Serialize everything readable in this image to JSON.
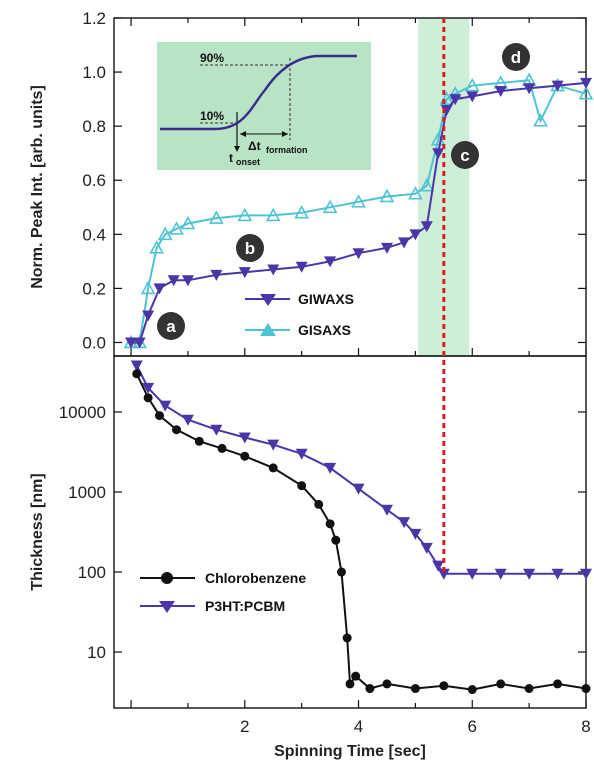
{
  "chart_data": [
    {
      "type": "line",
      "panel": "top",
      "ylabel": "Norm. Peak Int. [arb. units]",
      "xlim": [
        -0.3,
        8
      ],
      "ylim": [
        -0.05,
        1.2
      ],
      "yticks": [
        "0.0",
        "0.2",
        "0.4",
        "0.6",
        "0.8",
        "1.0",
        "1.2"
      ],
      "ytick_values": [
        0,
        0.2,
        0.4,
        0.6,
        0.8,
        1.0,
        1.2
      ],
      "shaded_region": [
        5.05,
        5.95
      ],
      "marker_line_x": 5.5,
      "series": [
        {
          "name": "GIWAXS",
          "color": "#4b35a8",
          "marker": "triangle-down",
          "x": [
            0.0,
            0.15,
            0.3,
            0.5,
            0.75,
            1.0,
            1.5,
            2.0,
            2.5,
            3.0,
            3.5,
            4.0,
            4.5,
            4.8,
            5.0,
            5.2,
            5.4,
            5.55,
            5.7,
            6.0,
            6.5,
            7.0,
            7.5,
            8.0
          ],
          "y": [
            0.0,
            0.0,
            0.1,
            0.2,
            0.23,
            0.23,
            0.25,
            0.26,
            0.27,
            0.28,
            0.3,
            0.33,
            0.35,
            0.37,
            0.4,
            0.43,
            0.7,
            0.86,
            0.9,
            0.91,
            0.93,
            0.94,
            0.95,
            0.96
          ]
        },
        {
          "name": "GISAXS",
          "color": "#4fc3d6",
          "marker": "triangle-up",
          "x": [
            0.0,
            0.15,
            0.3,
            0.45,
            0.6,
            0.8,
            1.0,
            1.5,
            2.0,
            2.5,
            3.0,
            3.5,
            4.0,
            4.5,
            5.0,
            5.2,
            5.4,
            5.55,
            5.7,
            6.0,
            6.5,
            7.0,
            7.2,
            7.5,
            8.0
          ],
          "y": [
            0.0,
            0.0,
            0.2,
            0.35,
            0.4,
            0.42,
            0.44,
            0.46,
            0.47,
            0.47,
            0.48,
            0.5,
            0.52,
            0.54,
            0.55,
            0.58,
            0.75,
            0.9,
            0.92,
            0.95,
            0.96,
            0.97,
            0.82,
            0.95,
            0.92
          ]
        }
      ],
      "inset": {
        "label_high": "90%",
        "label_low": "10%",
        "delta_label": "Δt",
        "delta_sub": "formation",
        "onset_label": "t",
        "onset_sub": "onset"
      },
      "stage_labels": [
        {
          "text": "a",
          "x": 0.45,
          "y": 0.1
        },
        {
          "text": "b",
          "x": 2.1,
          "y": 0.53
        },
        {
          "text": "c",
          "x": 5.8,
          "y": 0.67
        },
        {
          "text": "d",
          "x": 6.9,
          "y": 1.08
        }
      ],
      "legend": {
        "placement": "lower-center",
        "entries": [
          "GIWAXS",
          "GISAXS"
        ]
      }
    },
    {
      "type": "line",
      "panel": "bottom",
      "ylabel": "Thickness [nm]",
      "xlabel": "Spinning Time [sec]",
      "xlim": [
        -0.3,
        8
      ],
      "xticks": [
        "2",
        "4",
        "6",
        "8"
      ],
      "xtick_values": [
        2,
        4,
        6,
        8
      ],
      "yscale": "log",
      "ylim": [
        2,
        50000
      ],
      "yticks": [
        "10",
        "100",
        "1000",
        "10000"
      ],
      "ytick_values": [
        10,
        100,
        1000,
        10000
      ],
      "series": [
        {
          "name": "Chlorobenzene",
          "color": "#111111",
          "marker": "circle",
          "x": [
            0.1,
            0.3,
            0.5,
            0.8,
            1.2,
            1.6,
            2.0,
            2.5,
            3.0,
            3.3,
            3.5,
            3.6,
            3.7,
            3.8,
            3.85,
            3.95,
            4.2,
            4.5,
            5.0,
            5.5,
            6.0,
            6.5,
            7.0,
            7.5,
            8.0
          ],
          "y": [
            30000,
            15000,
            9000,
            6000,
            4300,
            3500,
            2800,
            2000,
            1200,
            700,
            400,
            250,
            100,
            15,
            4,
            5,
            3.5,
            4,
            3.5,
            3.8,
            3.4,
            4,
            3.5,
            4,
            3.5
          ]
        },
        {
          "name": "P3HT:PCBM",
          "color": "#4b35a8",
          "marker": "triangle-down",
          "x": [
            0.1,
            0.3,
            0.6,
            1.0,
            1.5,
            2.0,
            2.5,
            3.0,
            3.5,
            4.0,
            4.5,
            4.8,
            5.0,
            5.2,
            5.4,
            5.5,
            6.0,
            6.5,
            7.0,
            7.5,
            8.0
          ],
          "y": [
            38000,
            20000,
            12000,
            8000,
            6000,
            4800,
            3900,
            3000,
            2000,
            1100,
            600,
            420,
            300,
            200,
            120,
            95,
            95,
            95,
            95,
            95,
            95
          ]
        }
      ],
      "legend": {
        "placement": "lower-left",
        "entries": [
          "Chlorobenzene",
          "P3HT:PCBM"
        ]
      }
    }
  ]
}
